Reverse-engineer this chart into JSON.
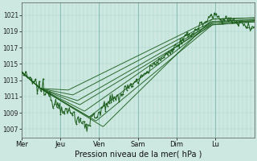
{
  "background_color": "#cce8e0",
  "plot_bg_color": "#cce8e0",
  "grid_minor_color": "#a8d4cc",
  "grid_major_color": "#88bfb5",
  "line_color": "#1a5c1a",
  "title": "Pression niveau de la mer( hPa )",
  "ylabel_values": [
    1007,
    1009,
    1011,
    1013,
    1015,
    1017,
    1019,
    1021
  ],
  "ylim": [
    1006.0,
    1022.5
  ],
  "x_day_labels": [
    "Mer",
    "Jeu",
    "Ven",
    "Sam",
    "Dim",
    "Lu"
  ],
  "x_day_positions": [
    0.0,
    0.167,
    0.333,
    0.5,
    0.667,
    0.833
  ],
  "num_points": 240
}
